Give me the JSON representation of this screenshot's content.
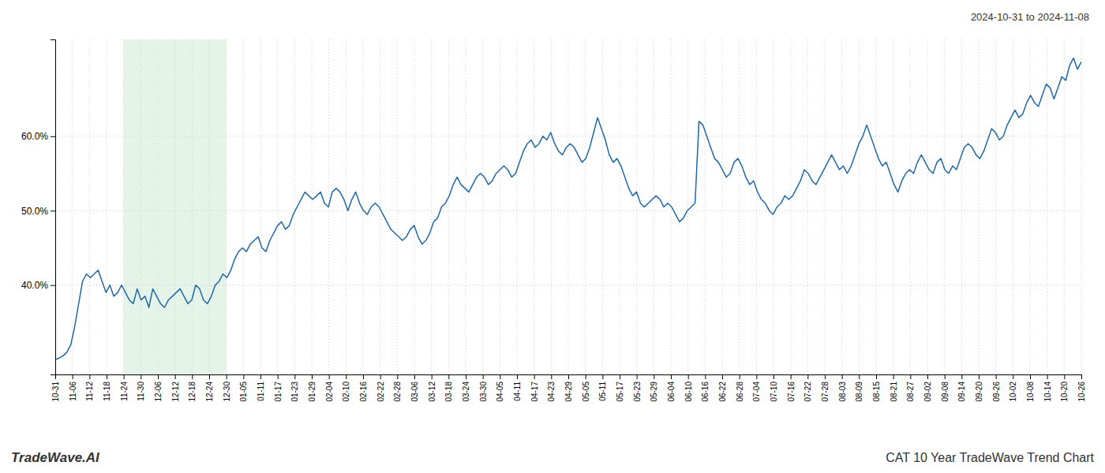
{
  "chart_data": {
    "type": "line",
    "title": "CAT 10 Year TradeWave Trend Chart",
    "subtitle": "2024-10-31 to 2024-11-08",
    "annotations": [
      "TradeWave.AI"
    ],
    "color": "#2068a8",
    "grid": true,
    "highlight": {
      "x": [
        4,
        10
      ],
      "color": "#d4edda"
    },
    "xlim": [
      0,
      60
    ],
    "xticks": [
      {
        "value": 0,
        "label": "10-31"
      },
      {
        "value": 1,
        "label": "11-06"
      },
      {
        "value": 2,
        "label": "11-12"
      },
      {
        "value": 3,
        "label": "11-18"
      },
      {
        "value": 4,
        "label": "11-24"
      },
      {
        "value": 5,
        "label": "11-30"
      },
      {
        "value": 6,
        "label": "12-06"
      },
      {
        "value": 7,
        "label": "12-12"
      },
      {
        "value": 8,
        "label": "12-18"
      },
      {
        "value": 9,
        "label": "12-24"
      },
      {
        "value": 10,
        "label": "12-30"
      },
      {
        "value": 11,
        "label": "01-05"
      },
      {
        "value": 12,
        "label": "01-11"
      },
      {
        "value": 13,
        "label": "01-17"
      },
      {
        "value": 14,
        "label": "01-23"
      },
      {
        "value": 15,
        "label": "01-29"
      },
      {
        "value": 16,
        "label": "02-04"
      },
      {
        "value": 17,
        "label": "02-10"
      },
      {
        "value": 18,
        "label": "02-16"
      },
      {
        "value": 19,
        "label": "02-22"
      },
      {
        "value": 20,
        "label": "02-28"
      },
      {
        "value": 21,
        "label": "03-06"
      },
      {
        "value": 22,
        "label": "03-12"
      },
      {
        "value": 23,
        "label": "03-18"
      },
      {
        "value": 24,
        "label": "03-24"
      },
      {
        "value": 25,
        "label": "03-30"
      },
      {
        "value": 26,
        "label": "04-05"
      },
      {
        "value": 27,
        "label": "04-11"
      },
      {
        "value": 28,
        "label": "04-17"
      },
      {
        "value": 29,
        "label": "04-23"
      },
      {
        "value": 30,
        "label": "04-29"
      },
      {
        "value": 31,
        "label": "05-05"
      },
      {
        "value": 32,
        "label": "05-11"
      },
      {
        "value": 33,
        "label": "05-17"
      },
      {
        "value": 34,
        "label": "05-23"
      },
      {
        "value": 35,
        "label": "05-29"
      },
      {
        "value": 36,
        "label": "06-04"
      },
      {
        "value": 37,
        "label": "06-10"
      },
      {
        "value": 38,
        "label": "06-16"
      },
      {
        "value": 39,
        "label": "06-22"
      },
      {
        "value": 40,
        "label": "06-28"
      },
      {
        "value": 41,
        "label": "07-04"
      },
      {
        "value": 42,
        "label": "07-10"
      },
      {
        "value": 43,
        "label": "07-16"
      },
      {
        "value": 44,
        "label": "07-22"
      },
      {
        "value": 45,
        "label": "07-28"
      },
      {
        "value": 46,
        "label": "08-03"
      },
      {
        "value": 47,
        "label": "08-09"
      },
      {
        "value": 48,
        "label": "08-15"
      },
      {
        "value": 49,
        "label": "08-21"
      },
      {
        "value": 50,
        "label": "08-27"
      },
      {
        "value": 51,
        "label": "09-02"
      },
      {
        "value": 52,
        "label": "09-08"
      },
      {
        "value": 53,
        "label": "09-14"
      },
      {
        "value": 54,
        "label": "09-20"
      },
      {
        "value": 55,
        "label": "09-26"
      },
      {
        "value": 56,
        "label": "10-02"
      },
      {
        "value": 57,
        "label": "10-08"
      },
      {
        "value": 58,
        "label": "10-14"
      },
      {
        "value": 59,
        "label": "10-20"
      },
      {
        "value": 60,
        "label": "10-26"
      }
    ],
    "ylim": [
      28,
      73
    ],
    "yticks": [
      {
        "value": 40.0,
        "label": "40.0%"
      },
      {
        "value": 50.0,
        "label": "50.0%"
      },
      {
        "value": 60.0,
        "label": "60.0%"
      }
    ],
    "values": [
      30.0,
      30.2,
      30.5,
      31.0,
      32.0,
      34.5,
      37.5,
      40.5,
      41.5,
      41.0,
      41.5,
      42.0,
      40.5,
      39.0,
      40.0,
      38.5,
      39.0,
      40.0,
      39.0,
      38.0,
      37.5,
      39.5,
      38.0,
      38.5,
      37.0,
      39.5,
      38.5,
      37.5,
      37.0,
      38.0,
      38.5,
      39.0,
      39.5,
      38.5,
      37.5,
      38.0,
      40.0,
      39.5,
      38.0,
      37.5,
      38.5,
      40.0,
      40.5,
      41.5,
      41.0,
      42.0,
      43.5,
      44.5,
      45.0,
      44.5,
      45.5,
      46.0,
      46.5,
      45.0,
      44.5,
      46.0,
      47.0,
      48.0,
      48.5,
      47.5,
      48.0,
      49.5,
      50.5,
      51.5,
      52.5,
      52.0,
      51.5,
      52.0,
      52.5,
      51.0,
      50.5,
      52.5,
      53.0,
      52.5,
      51.5,
      50.0,
      51.5,
      52.5,
      51.0,
      50.0,
      49.5,
      50.5,
      51.0,
      50.5,
      49.5,
      48.5,
      47.5,
      47.0,
      46.5,
      46.0,
      46.5,
      47.5,
      48.0,
      46.5,
      45.5,
      46.0,
      47.0,
      48.5,
      49.0,
      50.5,
      51.0,
      52.0,
      53.5,
      54.5,
      53.5,
      53.0,
      52.5,
      53.5,
      54.5,
      55.0,
      54.5,
      53.5,
      54.0,
      55.0,
      55.5,
      56.0,
      55.5,
      54.5,
      55.0,
      56.5,
      58.0,
      59.0,
      59.5,
      58.5,
      59.0,
      60.0,
      59.5,
      60.5,
      59.0,
      58.0,
      57.5,
      58.5,
      59.0,
      58.5,
      57.5,
      56.5,
      57.0,
      58.5,
      60.5,
      62.5,
      61.0,
      59.5,
      57.5,
      56.5,
      57.0,
      56.0,
      54.5,
      53.0,
      52.0,
      52.5,
      51.0,
      50.5,
      51.0,
      51.5,
      52.0,
      51.5,
      50.5,
      51.0,
      50.5,
      49.5,
      48.5,
      49.0,
      50.0,
      50.5,
      51.0,
      62.0,
      61.5,
      60.0,
      58.5,
      57.0,
      56.5,
      55.5,
      54.5,
      55.0,
      56.5,
      57.0,
      56.0,
      54.5,
      53.5,
      54.0,
      52.5,
      51.5,
      51.0,
      50.0,
      49.5,
      50.5,
      51.0,
      52.0,
      51.5,
      52.0,
      53.0,
      54.0,
      55.5,
      55.0,
      54.0,
      53.5,
      54.5,
      55.5,
      56.5,
      57.5,
      56.5,
      55.5,
      56.0,
      55.0,
      56.0,
      57.5,
      59.0,
      60.0,
      61.5,
      60.0,
      58.5,
      57.0,
      56.0,
      56.5,
      55.0,
      53.5,
      52.5,
      54.0,
      55.0,
      55.5,
      55.0,
      56.5,
      57.5,
      56.5,
      55.5,
      55.0,
      56.5,
      57.0,
      55.5,
      55.0,
      56.0,
      55.5,
      57.0,
      58.5,
      59.0,
      58.5,
      57.5,
      57.0,
      58.0,
      59.5,
      61.0,
      60.5,
      59.5,
      60.0,
      61.5,
      62.5,
      63.5,
      62.5,
      63.0,
      64.5,
      65.5,
      64.5,
      64.0,
      65.5,
      67.0,
      66.5,
      65.0,
      66.5,
      68.0,
      67.5,
      69.5,
      70.5,
      69.0,
      70.0
    ]
  }
}
